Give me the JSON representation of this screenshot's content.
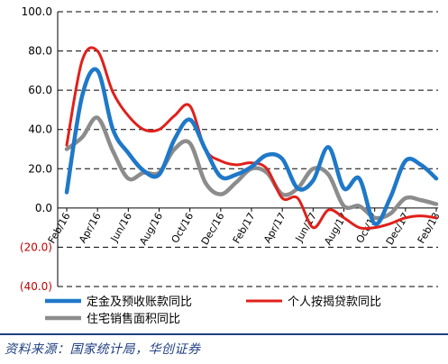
{
  "chart_data": {
    "type": "line",
    "ylim": [
      -40,
      100
    ],
    "yticks": [
      {
        "value": 100,
        "label": "100.0"
      },
      {
        "value": 80,
        "label": "80.0"
      },
      {
        "value": 60,
        "label": "60.0"
      },
      {
        "value": 40,
        "label": "40.0"
      },
      {
        "value": 20,
        "label": "20.0"
      },
      {
        "value": 0,
        "label": "0.0"
      },
      {
        "value": -20,
        "label": "(20.0)"
      },
      {
        "value": -40,
        "label": "(40.0)"
      }
    ],
    "x_tick_labels": [
      "Feb/16",
      "Apr/16",
      "Jun/16",
      "Aug/16",
      "Oct/16",
      "Dec/16",
      "Feb/17",
      "Apr/17",
      "Jun/17",
      "Aug/17",
      "Oct/17",
      "Dec/17",
      "Feb/18"
    ],
    "x": [
      "Feb/16",
      "Mar/16",
      "Apr/16",
      "May/16",
      "Jun/16",
      "Jul/16",
      "Aug/16",
      "Sep/16",
      "Oct/16",
      "Nov/16",
      "Dec/16",
      "Jan/17",
      "Feb/17",
      "Mar/17",
      "Apr/17",
      "May/17",
      "Jun/17",
      "Jul/17",
      "Aug/17",
      "Sep/17",
      "Oct/17",
      "Nov/17",
      "Dec/17",
      "Jan/18",
      "Feb/18"
    ],
    "series": [
      {
        "name": "定金及预收账款同比",
        "color": "#1f78c8",
        "values": [
          8,
          57,
          70,
          40,
          28,
          19,
          17,
          35,
          45,
          30,
          16,
          17,
          21,
          27,
          25,
          10,
          14,
          31,
          10,
          15,
          -8,
          5,
          24,
          22,
          15
        ]
      },
      {
        "name": "个人按揭贷款同比",
        "color": "#e0201b",
        "values": [
          32,
          75,
          80,
          59,
          47,
          40,
          40,
          47,
          52,
          30,
          24,
          22,
          23,
          20,
          5,
          5,
          -10,
          -1,
          -5,
          -10,
          -10,
          -8,
          -5,
          -4,
          -5
        ]
      },
      {
        "name": "住宅销售面积同比",
        "color": "#8c8c8c",
        "values": [
          30,
          36,
          46,
          29,
          15,
          18,
          18,
          30,
          33,
          13,
          7,
          13,
          20,
          18,
          7,
          10,
          20,
          17,
          1,
          1,
          -5,
          -3,
          5,
          4,
          2
        ]
      }
    ],
    "grid": "horizontal-dashed",
    "legend_position": "bottom"
  },
  "source": "资料来源：国家统计局，华创证券"
}
